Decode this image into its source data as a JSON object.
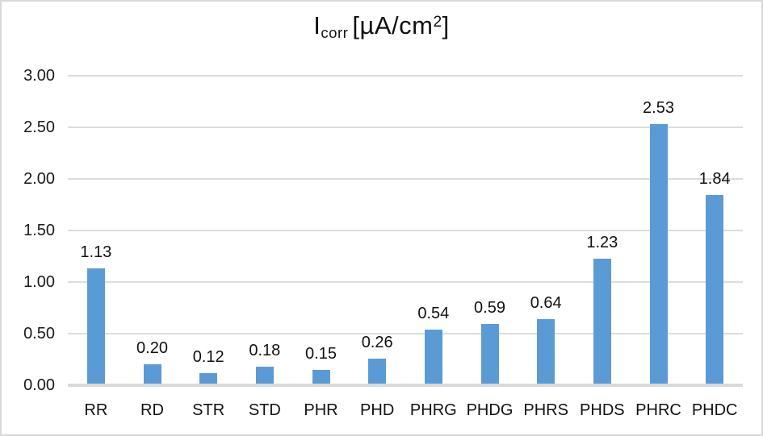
{
  "title": {
    "symbol": "I",
    "subscript": "corr",
    "unit_open": "[µA/cm",
    "unit_exp": "2",
    "unit_close": "]"
  },
  "chart_data": {
    "type": "bar",
    "title": "Icorr [µA/cm2]",
    "categories": [
      "RR",
      "RD",
      "STR",
      "STD",
      "PHR",
      "PHD",
      "PHRG",
      "PHDG",
      "PHRS",
      "PHDS",
      "PHRC",
      "PHDC"
    ],
    "values": [
      1.13,
      0.2,
      0.12,
      0.18,
      0.15,
      0.26,
      0.54,
      0.59,
      0.64,
      1.23,
      2.53,
      1.84
    ],
    "value_labels": [
      "1.13",
      "0.20",
      "0.12",
      "0.18",
      "0.15",
      "0.26",
      "0.54",
      "0.59",
      "0.64",
      "1.23",
      "2.53",
      "1.84"
    ],
    "ytick_labels": [
      "3.00",
      "2.50",
      "2.00",
      "1.50",
      "1.00",
      "0.50",
      "0.00"
    ],
    "ylim": [
      0,
      3
    ],
    "xlabel": "",
    "ylabel": "",
    "grid": true,
    "legend": false,
    "bar_color": "#5B9BD5",
    "gridline_color": "#DCDCDC",
    "axis_line_color": "#D9D9D9",
    "text_color": "#111111"
  }
}
